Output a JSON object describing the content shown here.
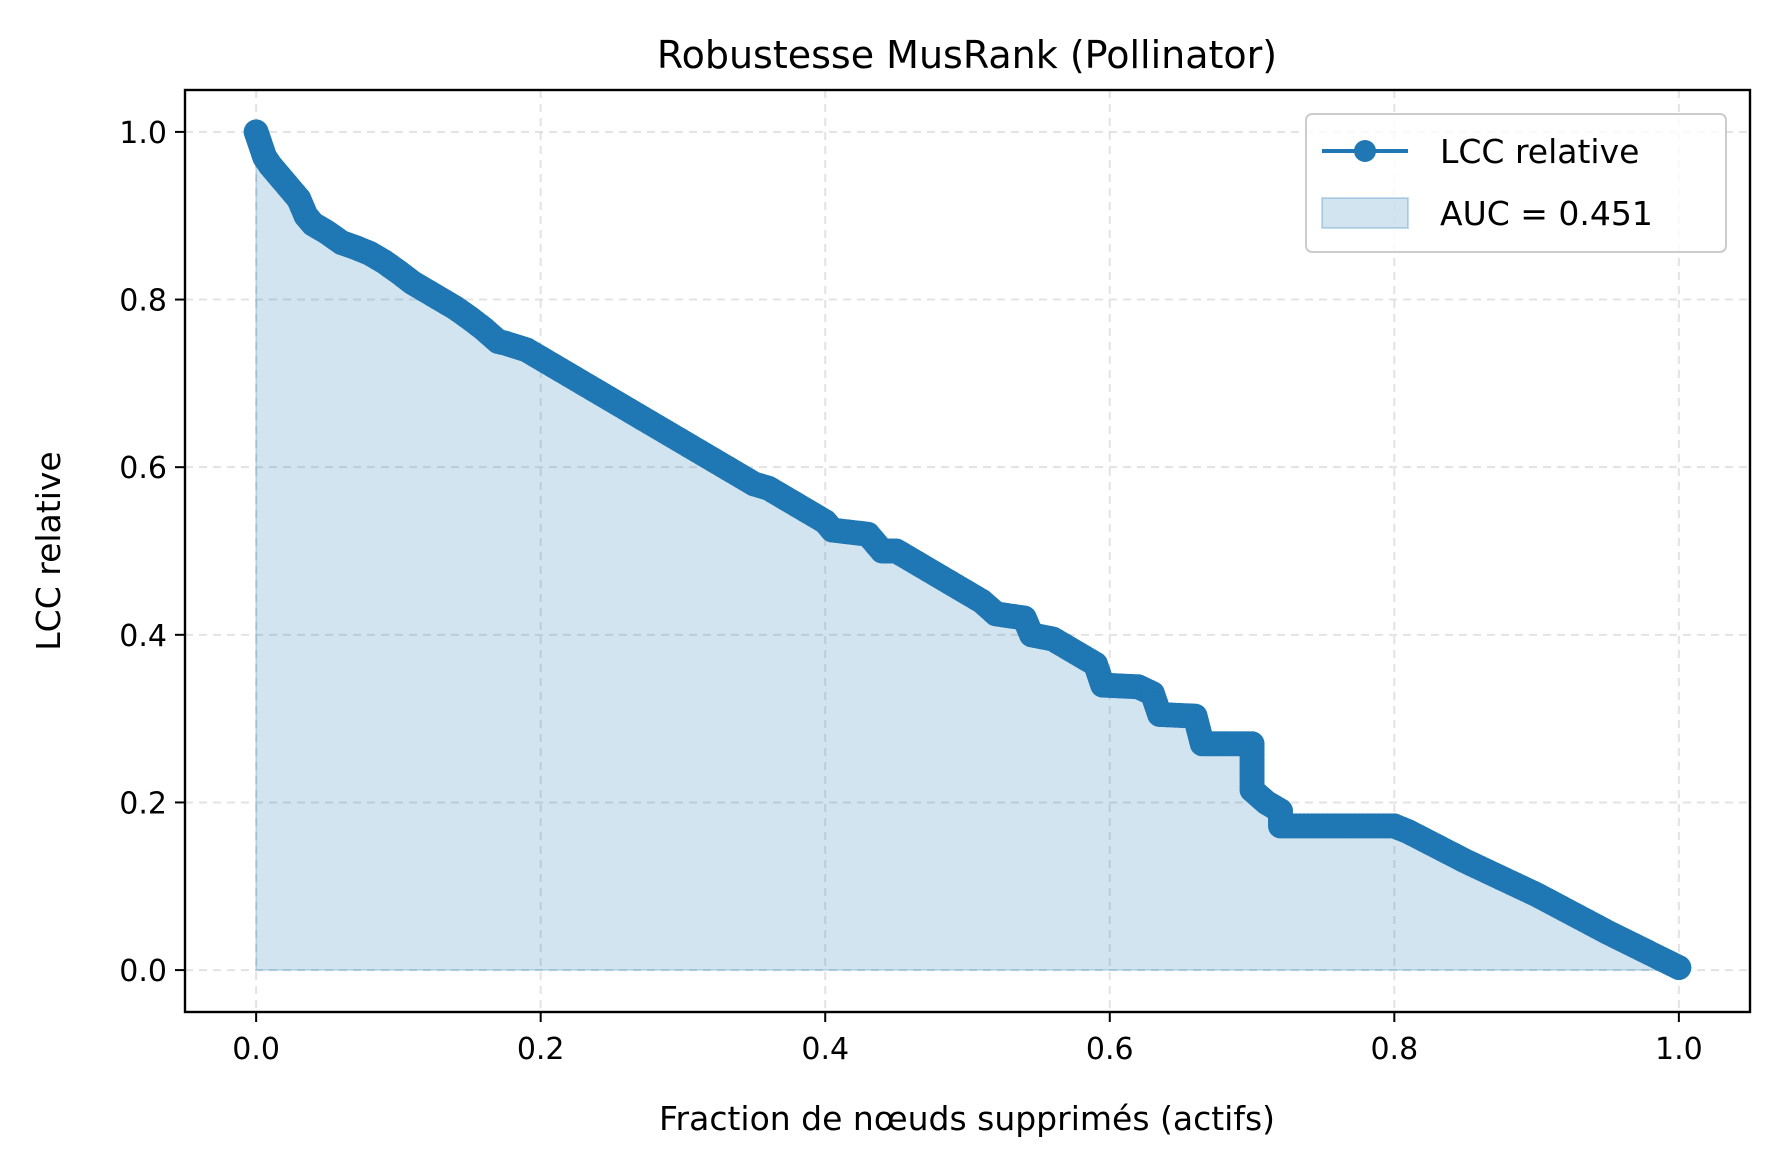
{
  "chart_data": {
    "type": "line",
    "title": "Robustesse MusRank (Pollinator)",
    "xlabel": "Fraction de nœuds supprimés (actifs)",
    "ylabel": "LCC relative",
    "xlim": [
      -0.05,
      1.05
    ],
    "ylim": [
      -0.05,
      1.05
    ],
    "xticks": [
      "0.0",
      "0.2",
      "0.4",
      "0.6",
      "0.8",
      "1.0"
    ],
    "yticks": [
      "0.0",
      "0.2",
      "0.4",
      "0.6",
      "0.8",
      "1.0"
    ],
    "grid": true,
    "legend_position": "top-right",
    "series": [
      {
        "name": "LCC relative",
        "color": "#1f77b4",
        "marker": "circle",
        "fill_under": true,
        "x": [
          0.0,
          0.003,
          0.006,
          0.01,
          0.015,
          0.02,
          0.025,
          0.03,
          0.035,
          0.04,
          0.05,
          0.06,
          0.07,
          0.08,
          0.09,
          0.1,
          0.11,
          0.12,
          0.13,
          0.14,
          0.15,
          0.16,
          0.17,
          0.175,
          0.19,
          0.2,
          0.21,
          0.22,
          0.23,
          0.24,
          0.25,
          0.26,
          0.27,
          0.28,
          0.29,
          0.3,
          0.31,
          0.32,
          0.33,
          0.34,
          0.35,
          0.36,
          0.37,
          0.38,
          0.39,
          0.4,
          0.405,
          0.43,
          0.44,
          0.45,
          0.46,
          0.47,
          0.48,
          0.49,
          0.5,
          0.51,
          0.52,
          0.54,
          0.545,
          0.56,
          0.57,
          0.58,
          0.59,
          0.595,
          0.62,
          0.63,
          0.635,
          0.66,
          0.665,
          0.7,
          0.7,
          0.71,
          0.72,
          0.72,
          0.8,
          0.81,
          0.85,
          0.9,
          0.95,
          1.0
        ],
        "y": [
          1.0,
          0.985,
          0.97,
          0.96,
          0.95,
          0.94,
          0.93,
          0.92,
          0.9,
          0.89,
          0.88,
          0.868,
          0.862,
          0.855,
          0.845,
          0.833,
          0.82,
          0.81,
          0.8,
          0.79,
          0.778,
          0.765,
          0.75,
          0.748,
          0.74,
          0.73,
          0.72,
          0.71,
          0.7,
          0.69,
          0.68,
          0.67,
          0.66,
          0.65,
          0.64,
          0.63,
          0.62,
          0.61,
          0.6,
          0.59,
          0.58,
          0.575,
          0.565,
          0.555,
          0.545,
          0.535,
          0.525,
          0.52,
          0.5,
          0.5,
          0.49,
          0.48,
          0.47,
          0.46,
          0.45,
          0.44,
          0.425,
          0.42,
          0.4,
          0.395,
          0.385,
          0.375,
          0.365,
          0.34,
          0.338,
          0.33,
          0.305,
          0.303,
          0.27,
          0.27,
          0.215,
          0.2,
          0.19,
          0.172,
          0.172,
          0.165,
          0.13,
          0.09,
          0.045,
          0.003
        ]
      },
      {
        "name": "AUC = 0.451",
        "color": "#1f77b4",
        "type": "area"
      }
    ]
  }
}
